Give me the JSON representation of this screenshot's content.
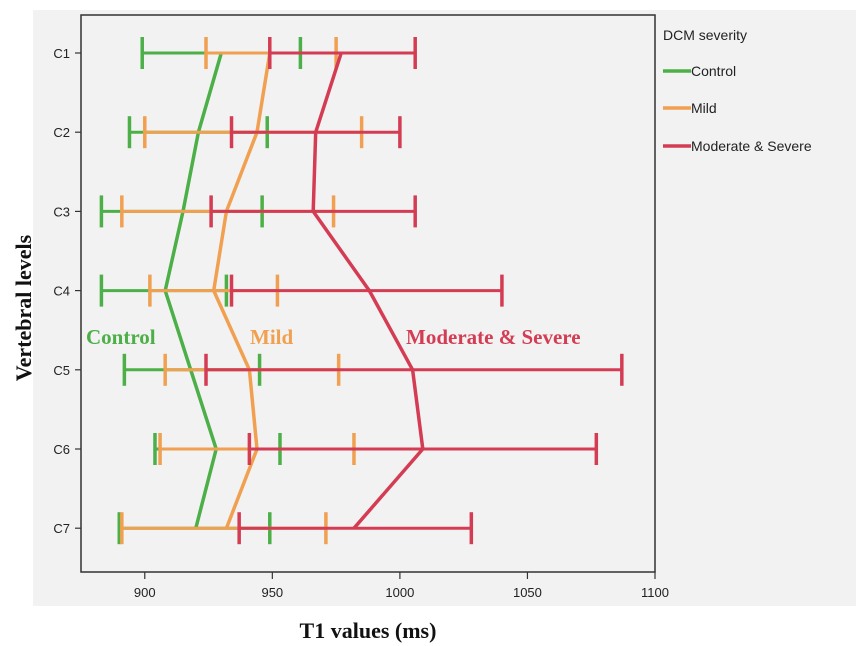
{
  "chart_data": {
    "type": "line",
    "xlabel": "T1 values (ms)",
    "ylabel": "Vertebral levels",
    "xlim": [
      875,
      1100
    ],
    "x_ticks": [
      "900",
      "950",
      "1000",
      "1050",
      "1100"
    ],
    "categories": [
      "C1",
      "C2",
      "C3",
      "C4",
      "C5",
      "C6",
      "C7"
    ],
    "legend": {
      "title": "DCM severity",
      "placement": "right-outside"
    },
    "series": [
      {
        "name": "Control",
        "color": "#4caf48",
        "mean": [
          930,
          921,
          915,
          908,
          918,
          928,
          920
        ],
        "low": [
          899,
          894,
          883,
          883,
          892,
          904,
          890
        ],
        "high": [
          961,
          948,
          946,
          932,
          945,
          953,
          949
        ]
      },
      {
        "name": "Mild",
        "color": "#f0a050",
        "mean": [
          949,
          944,
          932,
          927,
          941,
          944,
          932
        ],
        "low": [
          924,
          900,
          891,
          902,
          908,
          906,
          891
        ],
        "high": [
          975,
          985,
          974,
          952,
          976,
          982,
          971
        ]
      },
      {
        "name": "Moderate & Severe",
        "color": "#d43c54",
        "mean": [
          977,
          967,
          966,
          988,
          1005,
          1009,
          982
        ],
        "low": [
          949,
          934,
          926,
          934,
          924,
          941,
          937
        ],
        "high": [
          1006,
          1000,
          1006,
          1040,
          1087,
          1077,
          1028
        ]
      }
    ],
    "annotations": [
      {
        "text": "Control",
        "color": "#4caf48"
      },
      {
        "text": "Mild",
        "color": "#f0a050"
      },
      {
        "text": "Moderate & Severe",
        "color": "#d43c54"
      }
    ]
  }
}
